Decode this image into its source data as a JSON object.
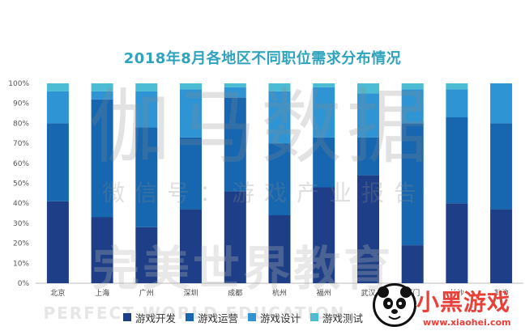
{
  "chart_data": {
    "type": "bar",
    "stacked": true,
    "title": "2018年8月各地区不同职位需求分布情况",
    "categories": [
      "北京",
      "上海",
      "广州",
      "深圳",
      "成都",
      "杭州",
      "福州",
      "武汉",
      "厦门",
      "长沙",
      "其他"
    ],
    "series": [
      {
        "name": "游戏开发",
        "color": "#1e3f87",
        "values": [
          41,
          33,
          28,
          37,
          46,
          34,
          48,
          54,
          19,
          40,
          37
        ]
      },
      {
        "name": "游戏运营",
        "color": "#1666b0",
        "values": [
          39,
          59,
          50,
          36,
          47,
          36,
          25,
          19,
          61,
          43,
          43
        ]
      },
      {
        "name": "游戏设计",
        "color": "#2f94d3",
        "values": [
          16,
          4,
          18,
          24,
          5,
          26,
          25,
          22,
          17,
          14,
          20
        ]
      },
      {
        "name": "游戏测试",
        "color": "#4cbcd4",
        "values": [
          4,
          4,
          4,
          3,
          2,
          4,
          2,
          5,
          3,
          3,
          0
        ]
      }
    ],
    "yticks": [
      "0%",
      "10%",
      "20%",
      "30%",
      "40%",
      "50%",
      "60%",
      "70%",
      "80%",
      "90%",
      "100%"
    ],
    "ylim": [
      0,
      100
    ],
    "grid": false,
    "legend_position": "bottom"
  },
  "watermarks": {
    "line1": "伽马数据",
    "line2": "微信号：游戏产业报告",
    "line3": "完美世界教育",
    "line4": "PERFECT WORLD EDUCATION"
  },
  "logo": {
    "name": "小黑游戏",
    "url": "www.xiaohei.com",
    "brand_color": "#e8413a"
  }
}
